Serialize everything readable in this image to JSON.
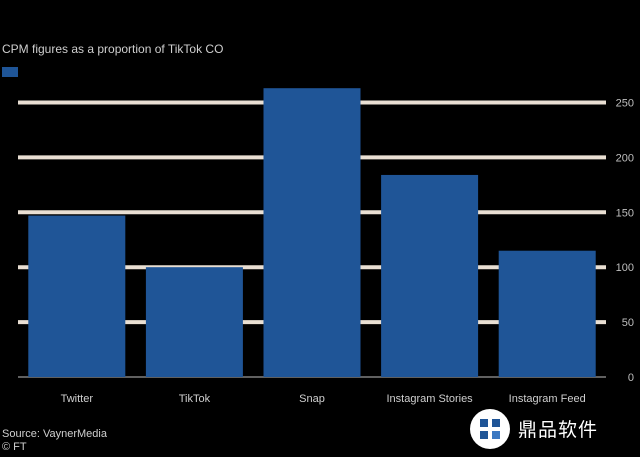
{
  "chart_data": {
    "type": "bar",
    "title": "",
    "subtitle": "CPM figures as a proportion of TikTok CO",
    "categories": [
      "Twitter",
      "TikTok",
      "Snap",
      "Instagram Stories",
      "Instagram Feed"
    ],
    "series": [
      {
        "values": [
          147,
          100,
          263,
          184,
          115
        ]
      }
    ],
    "yticks": [
      "0",
      "50",
      "100",
      "150",
      "200",
      "250"
    ],
    "ylim": [
      0,
      265
    ],
    "grid": true,
    "y_axis_side": "right",
    "xlabel": "",
    "ylabel": "",
    "colors": {
      "bar": "#1f5597",
      "grid": "#e9dfd3",
      "background": "#000000"
    }
  },
  "source": {
    "line1": "Source: VaynerMedia",
    "line2": "© FT"
  },
  "watermark": {
    "text": "鼎品软件",
    "icon": "watermark-logo-icon"
  }
}
